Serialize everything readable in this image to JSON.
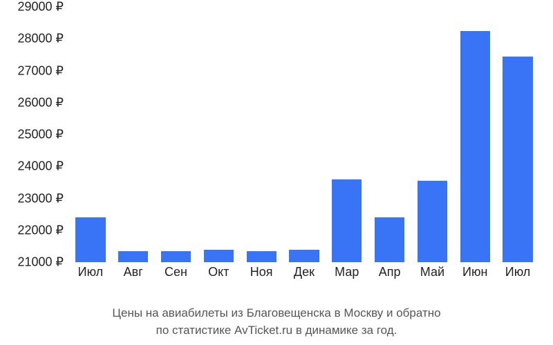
{
  "chart": {
    "type": "bar",
    "background_color": "#ffffff",
    "bar_color": "#3a74f6",
    "text_color": "#222222",
    "caption_color": "#555555",
    "label_fontsize": 18,
    "caption_fontsize": 17,
    "bar_width": 0.7,
    "currency_suffix": " ₽",
    "ylim": [
      21000,
      29000
    ],
    "ytick_step": 1000,
    "yticks": [
      21000,
      22000,
      23000,
      24000,
      25000,
      26000,
      27000,
      28000,
      29000
    ],
    "ytick_labels": [
      "21000 ₽",
      "22000 ₽",
      "23000 ₽",
      "24000 ₽",
      "25000 ₽",
      "26000 ₽",
      "27000 ₽",
      "28000 ₽",
      "29000 ₽"
    ],
    "categories": [
      "Июл",
      "Авг",
      "Сен",
      "Окт",
      "Ноя",
      "Дек",
      "Мар",
      "Апр",
      "Май",
      "Июн",
      "Июл"
    ],
    "values": [
      22400,
      21350,
      21350,
      21400,
      21350,
      21400,
      23600,
      22400,
      23550,
      28250,
      27450
    ]
  },
  "caption": {
    "line1": "Цены на авиабилеты из Благовещенска в Москву и обратно",
    "line2": "по статистике AvTicket.ru в динамике за год."
  }
}
